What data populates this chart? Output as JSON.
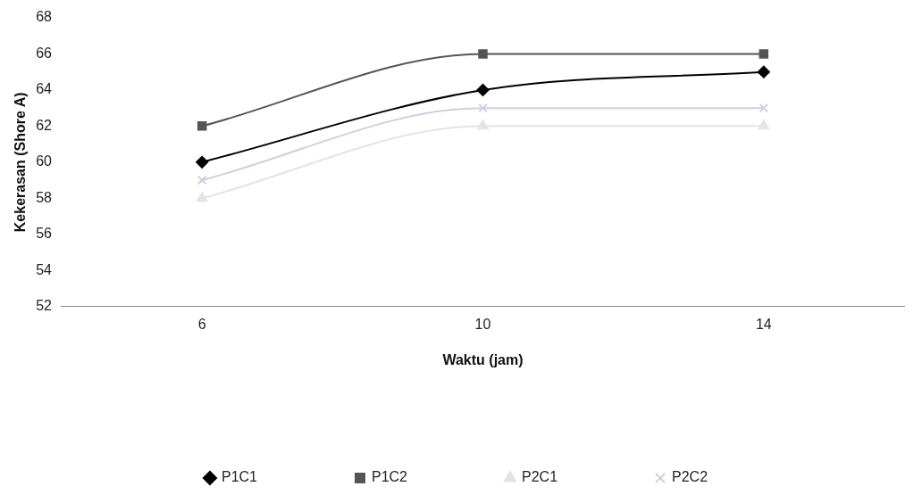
{
  "chart_data": {
    "type": "line",
    "xlabel": "Waktu (jam)",
    "ylabel": "Kekerasan (Shore A)",
    "categories": [
      "6",
      "10",
      "14"
    ],
    "series": [
      {
        "name": "P1C1",
        "color": "#000000",
        "marker": "diamond",
        "values": [
          60,
          64,
          65
        ]
      },
      {
        "name": "P1C2",
        "color": "#555555",
        "marker": "square",
        "values": [
          62,
          66,
          66
        ]
      },
      {
        "name": "P2C1",
        "color": "#e4e4e4",
        "marker": "triangle",
        "values": [
          58,
          62,
          62
        ]
      },
      {
        "name": "P2C2",
        "color": "#d4cce0",
        "marker": "cross",
        "values": [
          59,
          63,
          63
        ]
      }
    ],
    "ylim": [
      52,
      68
    ],
    "yticks": [
      52,
      54,
      56,
      58,
      60,
      62,
      64,
      66,
      68
    ],
    "grid": false,
    "legend": "bottom"
  }
}
